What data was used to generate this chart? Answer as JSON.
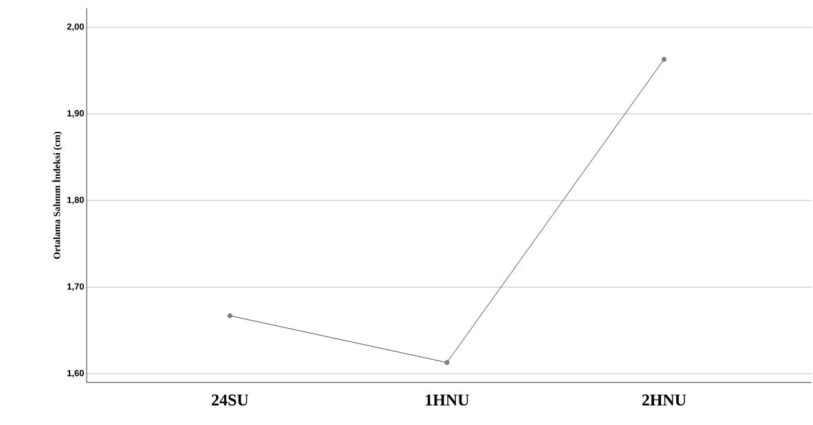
{
  "chart_data": {
    "type": "line",
    "ylabel": "Ortalama Salınım İndeksi (cm)",
    "categories": [
      "24SU",
      "1HNU",
      "2HNU"
    ],
    "series": [
      {
        "color": "#000000",
        "values": [
          1.667,
          1.613,
          1.963
        ]
      }
    ],
    "ylim": [
      1.59,
      2.022
    ],
    "yticks": [
      {
        "value": 1.6,
        "label": "1,60"
      },
      {
        "value": 1.7,
        "label": "1,70"
      },
      {
        "value": 1.8,
        "label": "1,80"
      },
      {
        "value": 1.9,
        "label": "1,90"
      },
      {
        "value": 2.0,
        "label": "2,00"
      }
    ],
    "grid": "y",
    "marker": "circle",
    "line_style": "solid"
  }
}
